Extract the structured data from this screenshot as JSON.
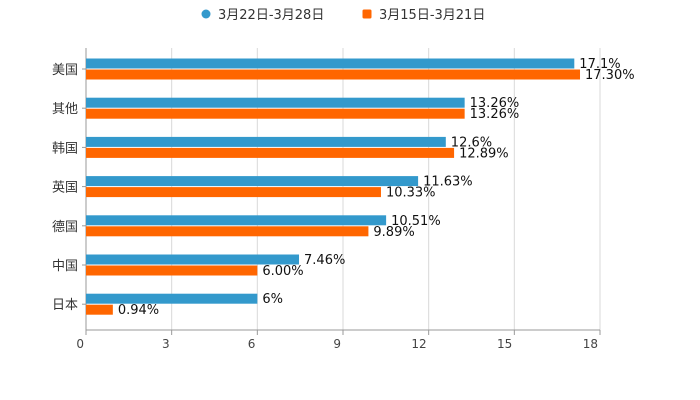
{
  "chart_data": {
    "type": "bar",
    "orientation": "horizontal",
    "categories": [
      "美国",
      "其他",
      "韩国",
      "英国",
      "德国",
      "中国",
      "日本"
    ],
    "series": [
      {
        "name": "3月22日-3月28日",
        "color": "#3399cc",
        "values": [
          17.1,
          13.26,
          12.6,
          11.63,
          10.51,
          7.46,
          6
        ],
        "labels": [
          "17.1%",
          "13.26%",
          "12.6%",
          "11.63%",
          "10.51%",
          "7.46%",
          "6%"
        ]
      },
      {
        "name": "3月15日-3月21日",
        "color": "#ff6600",
        "values": [
          17.3,
          13.26,
          12.89,
          10.33,
          9.89,
          6.0,
          0.94
        ],
        "labels": [
          "17.30%",
          "13.26%",
          "12.89%",
          "10.33%",
          "9.89%",
          "6.00%",
          "0.94%"
        ]
      }
    ],
    "x_ticks": [
      "0",
      "3",
      "6",
      "9",
      "12",
      "15",
      "18"
    ],
    "xlim": [
      0,
      18
    ],
    "grid": true,
    "legend": "top-center"
  }
}
